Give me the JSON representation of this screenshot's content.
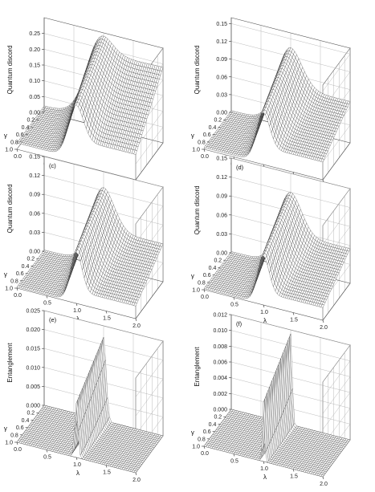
{
  "chart_data": [
    {
      "type": "surface",
      "panel_label": "",
      "zlabel": "Quantum discord",
      "xlabel": "λ",
      "ylabel": "γ",
      "x_ticks": [
        "0.0",
        "0.5",
        "1.0",
        "1.5",
        "2.0"
      ],
      "y_ticks": [
        "0.2",
        "0.4",
        "0.6",
        "0.8",
        "1.0"
      ],
      "z_ticks": [
        "0.00",
        "0.05",
        "0.10",
        "0.15",
        "0.20",
        "0.25"
      ],
      "xlim": [
        0,
        2
      ],
      "ylim": [
        0,
        1
      ],
      "zlim": [
        0,
        0.3
      ],
      "peak_lambda": 1.0,
      "peak_value": 0.29,
      "peak_width_gamma0": 0.35,
      "peak_width_gamma1": 0.18,
      "left_level": 0.02,
      "right_level_gamma0": 0.24,
      "right_level_gamma1": 0.08,
      "grid": true
    },
    {
      "type": "surface",
      "panel_label": "",
      "zlabel": "Quantum discord",
      "xlabel": "λ",
      "ylabel": "γ",
      "x_ticks": [
        "0.0",
        "0.5",
        "1.0",
        "1.5",
        "2.0"
      ],
      "y_ticks": [
        "0.2",
        "0.4",
        "0.6",
        "0.8",
        "1.0"
      ],
      "z_ticks": [
        "0.00",
        "0.03",
        "0.06",
        "0.09",
        "0.12",
        "0.15"
      ],
      "xlim": [
        0,
        2
      ],
      "ylim": [
        0,
        1
      ],
      "zlim": [
        0,
        0.16
      ],
      "peak_lambda": 1.0,
      "peak_value": 0.135,
      "peak_width_gamma0": 0.3,
      "peak_width_gamma1": 0.16,
      "left_level": 0.003,
      "right_level_gamma0": 0.07,
      "right_level_gamma1": 0.03,
      "grid": true
    },
    {
      "type": "surface",
      "panel_label": "(c)",
      "zlabel": "Quantum discord",
      "xlabel": "λ",
      "ylabel": "γ",
      "x_ticks": [
        "0.0",
        "0.5",
        "1.0",
        "1.5",
        "2.0"
      ],
      "y_ticks": [
        "0.2",
        "0.4",
        "0.6",
        "0.8",
        "1.0"
      ],
      "z_ticks": [
        "0.00",
        "0.03",
        "0.06",
        "0.09",
        "0.12",
        "0.15"
      ],
      "xlim": [
        0,
        2
      ],
      "ylim": [
        0,
        1
      ],
      "zlim": [
        0,
        0.15
      ],
      "peak_lambda": 1.0,
      "peak_value": 0.125,
      "peak_width_gamma0": 0.28,
      "peak_width_gamma1": 0.14,
      "left_level": 0.002,
      "right_level_gamma0": 0.06,
      "right_level_gamma1": 0.02,
      "grid": true
    },
    {
      "type": "surface",
      "panel_label": "(d)",
      "zlabel": "Quantum discord",
      "xlabel": "λ",
      "ylabel": "γ",
      "x_ticks": [
        "0.0",
        "0.5",
        "1.0",
        "1.5",
        "2.0"
      ],
      "y_ticks": [
        "0.2",
        "0.4",
        "0.6",
        "0.8",
        "1.0"
      ],
      "z_ticks": [
        "0.00",
        "0.03",
        "0.06",
        "0.09",
        "0.12",
        "0.15"
      ],
      "xlim": [
        0,
        2
      ],
      "ylim": [
        0,
        1
      ],
      "zlim": [
        0,
        0.15
      ],
      "peak_lambda": 1.0,
      "peak_value": 0.12,
      "peak_width_gamma0": 0.28,
      "peak_width_gamma1": 0.14,
      "left_level": 0.002,
      "right_level_gamma0": 0.055,
      "right_level_gamma1": 0.02,
      "grid": true
    },
    {
      "type": "surface",
      "panel_label": "(e)",
      "zlabel": "Entanglement",
      "xlabel": "λ",
      "ylabel": "γ",
      "x_ticks": [
        "0.0",
        "0.5",
        "1.0",
        "1.5",
        "2.0"
      ],
      "y_ticks": [
        "0.2",
        "0.4",
        "0.6",
        "0.8",
        "1.0"
      ],
      "z_ticks": [
        "0.000",
        "0.005",
        "0.010",
        "0.015",
        "0.020",
        "0.025"
      ],
      "xlim": [
        0,
        2
      ],
      "ylim": [
        0,
        1
      ],
      "zlim": [
        0,
        0.025
      ],
      "peak_lambda": 1.0,
      "peak_value": 0.022,
      "peak_width_gamma0": 0.06,
      "peak_width_gamma1": 0.04,
      "left_level": 0.0,
      "right_level_gamma0": 0.0,
      "right_level_gamma1": 0.0,
      "grid": true
    },
    {
      "type": "surface",
      "panel_label": "(f)",
      "zlabel": "Entanglement",
      "xlabel": "λ",
      "ylabel": "γ",
      "x_ticks": [
        "0.0",
        "0.5",
        "1.0",
        "1.5",
        "2.0"
      ],
      "y_ticks": [
        "0.2",
        "0.4",
        "0.6",
        "0.8",
        "1.0"
      ],
      "z_ticks": [
        "0.000",
        "0.002",
        "0.004",
        "0.006",
        "0.008",
        "0.010",
        "0.012"
      ],
      "xlim": [
        0,
        2
      ],
      "ylim": [
        0,
        1
      ],
      "zlim": [
        0,
        0.012
      ],
      "peak_lambda": 1.0,
      "peak_value": 0.0115,
      "peak_width_gamma0": 0.035,
      "peak_width_gamma1": 0.025,
      "left_level": 0.0,
      "right_level_gamma0": 0.0,
      "right_level_gamma1": 0.0,
      "grid": true
    }
  ]
}
